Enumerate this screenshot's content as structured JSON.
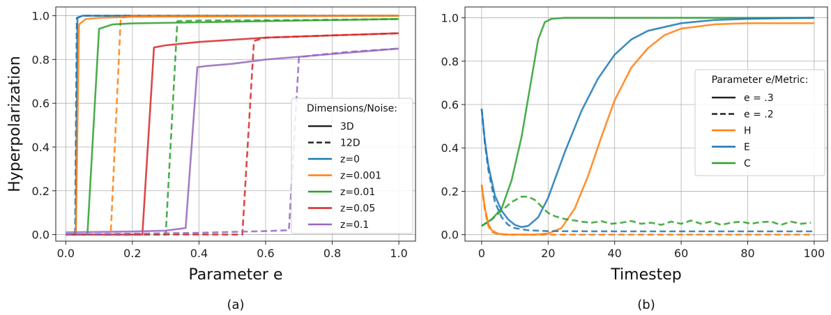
{
  "chart_data": [
    {
      "type": "line",
      "caption": "(a)",
      "xlabel": "Parameter e",
      "ylabel": "Hyperpolarization",
      "xlim": [
        -0.03,
        1.05
      ],
      "ylim": [
        -0.03,
        1.04
      ],
      "xticks": [
        "0.0",
        "0.2",
        "0.4",
        "0.6",
        "0.8",
        "1.0"
      ],
      "yticks": [
        "0.0",
        "0.2",
        "0.4",
        "0.6",
        "0.8",
        "1.0"
      ],
      "grid": true,
      "legend": {
        "title": "Dimensions/Noise:",
        "placement": "lower-right",
        "style_entries": [
          {
            "label": "3D",
            "dash": "solid"
          },
          {
            "label": "12D",
            "dash": "dashed"
          }
        ],
        "color_entries": [
          {
            "label": "z=0",
            "color": "#1f77b4"
          },
          {
            "label": "z=0.001",
            "color": "#ff7f0e"
          },
          {
            "label": "z=0.01",
            "color": "#2ca02c"
          },
          {
            "label": "z=0.05",
            "color": "#d62728"
          },
          {
            "label": "z=0.1",
            "color": "#9467bd"
          }
        ]
      },
      "series": [
        {
          "color": "#1f77b4",
          "dash": "solid",
          "x": [
            0,
            0.03,
            0.035,
            0.05,
            0.1,
            0.3,
            1.0
          ],
          "y": [
            0.0,
            0.0,
            0.99,
            1.0,
            1.0,
            1.0,
            1.0
          ]
        },
        {
          "color": "#1f77b4",
          "dash": "dashed",
          "x": [
            0,
            0.028,
            0.033,
            0.05,
            0.1,
            0.3,
            1.0
          ],
          "y": [
            0.0,
            0.0,
            0.99,
            1.0,
            1.0,
            1.0,
            1.0
          ]
        },
        {
          "color": "#ff7f0e",
          "dash": "solid",
          "x": [
            0,
            0.03,
            0.04,
            0.06,
            0.1,
            0.2,
            1.0
          ],
          "y": [
            0.0,
            0.0,
            0.96,
            0.985,
            0.99,
            0.995,
            1.0
          ]
        },
        {
          "color": "#ff7f0e",
          "dash": "dashed",
          "x": [
            0,
            0.135,
            0.165,
            0.2,
            0.4,
            1.0
          ],
          "y": [
            0.0,
            0.0,
            0.99,
            1.0,
            1.0,
            1.0
          ]
        },
        {
          "color": "#2ca02c",
          "dash": "solid",
          "x": [
            0,
            0.065,
            0.1,
            0.14,
            0.2,
            0.4,
            0.7,
            1.0
          ],
          "y": [
            0.0,
            0.0,
            0.94,
            0.96,
            0.965,
            0.97,
            0.978,
            0.985
          ]
        },
        {
          "color": "#2ca02c",
          "dash": "dashed",
          "x": [
            0,
            0.3,
            0.335,
            0.4,
            0.7,
            1.0
          ],
          "y": [
            0.0,
            0.0,
            0.975,
            0.978,
            0.98,
            0.985
          ]
        },
        {
          "color": "#d62728",
          "dash": "solid",
          "x": [
            0,
            0.23,
            0.265,
            0.3,
            0.4,
            0.6,
            0.8,
            1.0
          ],
          "y": [
            0.0,
            0.0,
            0.855,
            0.865,
            0.88,
            0.9,
            0.91,
            0.92
          ]
        },
        {
          "color": "#d62728",
          "dash": "dashed",
          "x": [
            0,
            0.53,
            0.565,
            0.6,
            0.8,
            1.0
          ],
          "y": [
            0.0,
            0.0,
            0.885,
            0.9,
            0.91,
            0.92
          ]
        },
        {
          "color": "#9467bd",
          "dash": "solid",
          "x": [
            0,
            0.1,
            0.2,
            0.3,
            0.36,
            0.395,
            0.42,
            0.5,
            0.6,
            0.8,
            1.0
          ],
          "y": [
            0.01,
            0.012,
            0.014,
            0.018,
            0.03,
            0.765,
            0.77,
            0.78,
            0.8,
            0.825,
            0.85
          ]
        },
        {
          "color": "#9467bd",
          "dash": "dashed",
          "x": [
            0,
            0.2,
            0.4,
            0.5,
            0.6,
            0.67,
            0.7,
            0.75,
            0.85,
            1.0
          ],
          "y": [
            0.0,
            0.004,
            0.008,
            0.012,
            0.016,
            0.02,
            0.81,
            0.82,
            0.835,
            0.85
          ]
        }
      ]
    },
    {
      "type": "line",
      "caption": "(b)",
      "xlabel": "Timestep",
      "ylabel": "",
      "xlim": [
        -5,
        104
      ],
      "ylim": [
        -0.03,
        1.05
      ],
      "xticks": [
        "0",
        "20",
        "40",
        "60",
        "80",
        "100"
      ],
      "yticks": [
        "0.0",
        "0.2",
        "0.4",
        "0.6",
        "0.8",
        "1.0"
      ],
      "grid": true,
      "legend": {
        "title": "Parameter e/Metric:",
        "placement": "center-right",
        "style_entries": [
          {
            "label": "e = .3",
            "dash": "solid"
          },
          {
            "label": "e = .2",
            "dash": "dashed"
          }
        ],
        "color_entries": [
          {
            "label": "H",
            "color": "#ff7f0e"
          },
          {
            "label": "E",
            "color": "#1f77b4"
          },
          {
            "label": "C",
            "color": "#2ca02c"
          }
        ]
      },
      "series": [
        {
          "color": "#2ca02c",
          "dash": "solid",
          "x": [
            0,
            3,
            6,
            9,
            12,
            15,
            17,
            19,
            21,
            25,
            30,
            40,
            100
          ],
          "y": [
            0.04,
            0.07,
            0.12,
            0.25,
            0.45,
            0.72,
            0.9,
            0.98,
            0.995,
            1.0,
            1.0,
            1.0,
            1.0
          ]
        },
        {
          "color": "#1f77b4",
          "dash": "solid",
          "x": [
            0,
            1,
            2,
            4,
            6,
            8,
            10,
            12,
            14,
            17,
            20,
            25,
            30,
            35,
            40,
            45,
            50,
            60,
            70,
            80,
            90,
            100
          ],
          "y": [
            0.58,
            0.43,
            0.32,
            0.18,
            0.11,
            0.07,
            0.045,
            0.035,
            0.04,
            0.08,
            0.17,
            0.38,
            0.57,
            0.72,
            0.83,
            0.9,
            0.94,
            0.975,
            0.99,
            0.995,
            0.998,
            1.0
          ]
        },
        {
          "color": "#ff7f0e",
          "dash": "solid",
          "x": [
            0,
            1,
            2,
            3,
            5,
            8,
            12,
            16,
            20,
            24,
            28,
            32,
            36,
            40,
            45,
            50,
            55,
            60,
            70,
            80,
            90,
            100
          ],
          "y": [
            0.23,
            0.12,
            0.05,
            0.02,
            0.004,
            0.0,
            0.0,
            0.0,
            0.005,
            0.03,
            0.12,
            0.27,
            0.45,
            0.62,
            0.77,
            0.86,
            0.92,
            0.95,
            0.97,
            0.975,
            0.975,
            0.975
          ]
        },
        {
          "color": "#1f77b4",
          "dash": "dashed",
          "x": [
            0,
            1,
            2,
            4,
            6,
            8,
            10,
            14,
            20,
            40,
            60,
            80,
            100
          ],
          "y": [
            0.58,
            0.42,
            0.3,
            0.15,
            0.08,
            0.045,
            0.03,
            0.02,
            0.016,
            0.015,
            0.015,
            0.015,
            0.015
          ]
        },
        {
          "color": "#ff7f0e",
          "dash": "dashed",
          "x": [
            0,
            1,
            2,
            3,
            5,
            8,
            20,
            100
          ],
          "y": [
            0.23,
            0.11,
            0.04,
            0.012,
            0.002,
            0.0,
            0.0,
            0.0
          ]
        },
        {
          "color": "#2ca02c",
          "dash": "dashed",
          "x": [
            0,
            3,
            6,
            9,
            12,
            14,
            16,
            18,
            20,
            22,
            25,
            28,
            30,
            33,
            36,
            39,
            42,
            45,
            48,
            51,
            54,
            57,
            60,
            63,
            66,
            69,
            72,
            75,
            78,
            81,
            84,
            87,
            90,
            93,
            96,
            99
          ],
          "y": [
            0.04,
            0.07,
            0.11,
            0.15,
            0.175,
            0.175,
            0.16,
            0.13,
            0.1,
            0.085,
            0.072,
            0.065,
            0.06,
            0.055,
            0.062,
            0.05,
            0.055,
            0.063,
            0.05,
            0.055,
            0.045,
            0.06,
            0.05,
            0.065,
            0.05,
            0.06,
            0.045,
            0.055,
            0.06,
            0.05,
            0.058,
            0.06,
            0.045,
            0.06,
            0.05,
            0.055
          ]
        }
      ]
    }
  ]
}
